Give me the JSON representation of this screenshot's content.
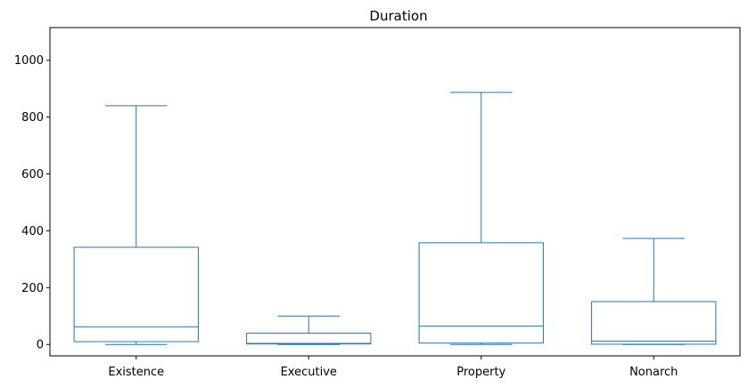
{
  "chart_data": {
    "type": "boxplot",
    "title": "Duration",
    "xlabel": "",
    "ylabel": "",
    "ylim": [
      -40,
      1115
    ],
    "yticks": [
      0,
      200,
      400,
      600,
      800,
      1000
    ],
    "ytick_labels": [
      "0",
      "200",
      "400",
      "600",
      "800",
      "1000"
    ],
    "grid": false,
    "color": "#1f77b4",
    "categories": [
      "Existence",
      "Executive",
      "Property",
      "Nonarch"
    ],
    "boxes": [
      {
        "category": "Existence",
        "whisker_low": 0,
        "q1": 10,
        "median": 62,
        "q3": 342,
        "whisker_high": 840
      },
      {
        "category": "Executive",
        "whisker_low": 0,
        "q1": 2,
        "median": 4,
        "q3": 40,
        "whisker_high": 100
      },
      {
        "category": "Property",
        "whisker_low": 0,
        "q1": 5,
        "median": 65,
        "q3": 358,
        "whisker_high": 887
      },
      {
        "category": "Nonarch",
        "whisker_low": 0,
        "q1": 1,
        "median": 12,
        "q3": 151,
        "whisker_high": 373
      }
    ]
  }
}
